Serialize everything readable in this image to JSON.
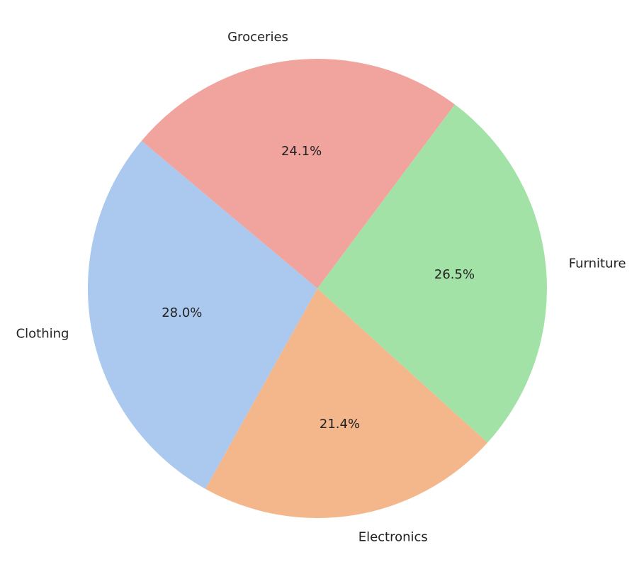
{
  "chart_data": {
    "type": "pie",
    "categories": [
      "Clothing",
      "Electronics",
      "Furniture",
      "Groceries"
    ],
    "values": [
      28.0,
      21.4,
      26.5,
      24.1
    ],
    "value_labels": [
      "28.0%",
      "21.4%",
      "26.5%",
      "24.1%"
    ],
    "colors": [
      "#abc8ee",
      "#f3b78b",
      "#a3e2a6",
      "#f1a39e"
    ],
    "startangle": 140
  }
}
